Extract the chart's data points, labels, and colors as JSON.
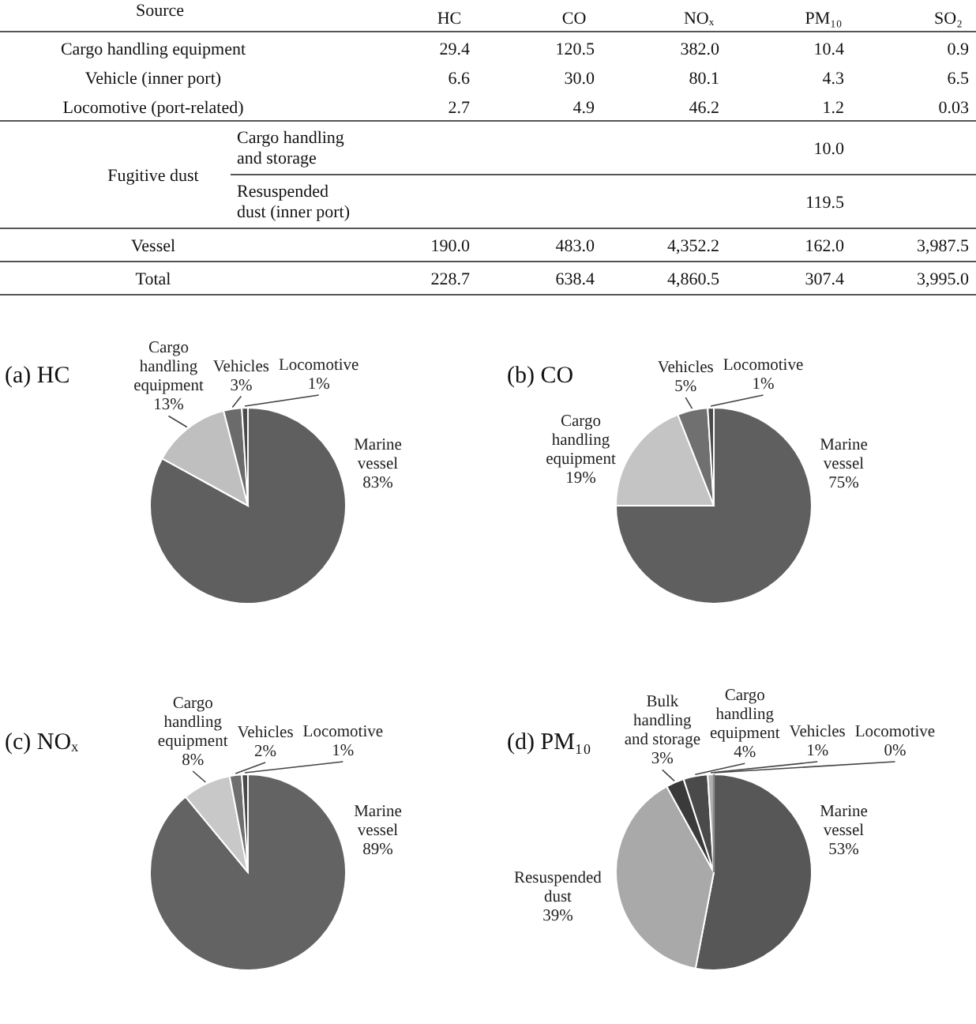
{
  "chart_data": [
    {
      "type": "heatmap",
      "ylabel": "Source",
      "categories": [
        "HC",
        "CO",
        "NOₓ",
        "PM₁₀",
        "SO₂"
      ],
      "y_categories": [
        "Cargo handling equipment",
        "Vehicle (inner port)",
        "Locomotive (port-related)",
        "Fugitive dust",
        null,
        "Vessel",
        "Total"
      ],
      "y2_categories": [
        null,
        null,
        null,
        "Cargo handling and storage",
        "Resuspended dust (inner port)",
        null,
        null
      ],
      "cells": [
        [
          29.4,
          120.5,
          382.0,
          10.4,
          0.9
        ],
        [
          6.6,
          30.0,
          80.1,
          4.3,
          6.5
        ],
        [
          2.7,
          4.9,
          46.2,
          1.2,
          0.03
        ],
        [
          null,
          null,
          null,
          10.0,
          null
        ],
        [
          null,
          null,
          null,
          119.5,
          null
        ],
        [
          190.0,
          483.0,
          4352.2,
          162.0,
          3987.5
        ],
        [
          228.7,
          638.4,
          4860.5,
          307.4,
          3995.0
        ]
      ],
      "cell_labels": [
        [
          "29.4",
          "120.5",
          "382.0",
          "10.4",
          "0.9"
        ],
        [
          "6.6",
          "30.0",
          "80.1",
          "4.3",
          "6.5"
        ],
        [
          "2.7",
          "4.9",
          "46.2",
          "1.2",
          "0.03"
        ],
        [
          null,
          null,
          null,
          "10.0",
          null
        ],
        [
          null,
          null,
          null,
          "119.5",
          null
        ],
        [
          "190.0",
          "483.0",
          "4,352.2",
          "162.0",
          "3,987.5"
        ],
        [
          "228.7",
          "638.4",
          "4,860.5",
          "307.4",
          "3,995.0"
        ]
      ]
    },
    {
      "type": "pie",
      "title": "(a) HC",
      "categories": [
        "Marine vessel",
        "Cargo handling equipment",
        "Vehicles",
        "Locomotive"
      ],
      "values": [
        83,
        13,
        3,
        1
      ],
      "colors": [
        "#5f5f5f",
        "#bfbfbf",
        "#6b6b6b",
        "#4a4a4a"
      ],
      "value_labels": [
        "83%",
        "13%",
        "3%",
        "1%"
      ]
    },
    {
      "type": "pie",
      "title": "(b) CO",
      "categories": [
        "Marine vessel",
        "Cargo handling equipment",
        "Vehicles",
        "Locomotive"
      ],
      "values": [
        75,
        19,
        5,
        1
      ],
      "colors": [
        "#5f5f5f",
        "#c4c4c4",
        "#707070",
        "#4a4a4a"
      ],
      "value_labels": [
        "75%",
        "19%",
        "5%",
        "1%"
      ]
    },
    {
      "type": "pie",
      "title": "(c) NOₓ",
      "categories": [
        "Marine vessel",
        "Cargo handling equipment",
        "Vehicles",
        "Locomotive"
      ],
      "values": [
        89,
        8,
        2,
        1
      ],
      "colors": [
        "#636363",
        "#c8c8c8",
        "#6e6e6e",
        "#4a4a4a"
      ],
      "value_labels": [
        "89%",
        "8%",
        "2%",
        "1%"
      ]
    },
    {
      "type": "pie",
      "title": "(d) PM₁₀",
      "categories": [
        "Marine vessel",
        "Resuspended dust",
        "Bulk handling and storage",
        "Cargo handling equipment",
        "Vehicles",
        "Locomotive"
      ],
      "values": [
        53,
        39,
        3,
        4,
        1,
        0
      ],
      "colors": [
        "#575757",
        "#a9a9a9",
        "#3a3a3a",
        "#4a4a4a",
        "#b0b0b0",
        "#8a8a8a"
      ],
      "value_labels": [
        "53%",
        "39%",
        "3%",
        "4%",
        "1%",
        "0%"
      ]
    }
  ]
}
